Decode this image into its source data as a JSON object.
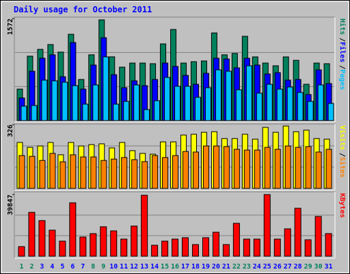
{
  "chart_data": [
    {
      "type": "bar",
      "title": "Daily usage for October 2011",
      "legend_separator": "/",
      "categories": [
        "1",
        "2",
        "3",
        "4",
        "5",
        "6",
        "7",
        "8",
        "9",
        "10",
        "11",
        "12",
        "13",
        "14",
        "15",
        "16",
        "17",
        "18",
        "19",
        "20",
        "21",
        "22",
        "23",
        "24",
        "25",
        "26",
        "27",
        "28",
        "29",
        "30",
        "31"
      ],
      "ylim": [
        0,
        1572
      ],
      "yticks": [
        1572
      ],
      "series": [
        {
          "name": "Hits",
          "color": "#00805c",
          "values": [
            485,
            992,
            1097,
            1171,
            1055,
            1329,
            633,
            1013,
            1551,
            982,
            823,
            886,
            886,
            876,
            1181,
            1403,
            886,
            907,
            918,
            1350,
            1013,
            1034,
            1298,
            981,
            886,
            844,
            981,
            928,
            559,
            886,
            876
          ]
        },
        {
          "name": "Files",
          "color": "#0000ff",
          "values": [
            348,
            760,
            960,
            1013,
            675,
            1202,
            485,
            855,
            1276,
            707,
            506,
            612,
            538,
            633,
            886,
            834,
            696,
            559,
            728,
            960,
            949,
            812,
            960,
            855,
            718,
            738,
            623,
            633,
            401,
            781,
            570
          ]
        },
        {
          "name": "Pages",
          "color": "#00c0ff",
          "values": [
            222,
            232,
            623,
            612,
            591,
            538,
            253,
            549,
            981,
            253,
            295,
            549,
            169,
            306,
            665,
            528,
            528,
            359,
            506,
            781,
            760,
            475,
            844,
            422,
            559,
            485,
            517,
            433,
            295,
            549,
            264
          ]
        }
      ]
    },
    {
      "type": "bar",
      "legend_separator": "/",
      "ylim": [
        0,
        326
      ],
      "yticks": [
        326
      ],
      "series": [
        {
          "name": "Visits",
          "color": "#ffff00",
          "values": [
            235,
            210,
            217,
            235,
            172,
            235,
            217,
            224,
            228,
            207,
            235,
            193,
            179,
            175,
            238,
            238,
            273,
            277,
            287,
            290,
            255,
            255,
            277,
            252,
            312,
            287,
            319,
            290,
            298,
            255,
            252
          ]
        },
        {
          "name": "Sites",
          "color": "#ff8000",
          "values": [
            168,
            164,
            143,
            179,
            136,
            172,
            161,
            161,
            143,
            150,
            158,
            147,
            137,
            168,
            158,
            168,
            189,
            186,
            217,
            217,
            214,
            200,
            196,
            196,
            210,
            200,
            217,
            210,
            214,
            186,
            200
          ]
        }
      ]
    },
    {
      "type": "bar",
      "categories": [
        "1",
        "2",
        "3",
        "4",
        "5",
        "6",
        "7",
        "8",
        "9",
        "10",
        "11",
        "12",
        "13",
        "14",
        "15",
        "16",
        "17",
        "18",
        "19",
        "20",
        "21",
        "22",
        "23",
        "24",
        "25",
        "26",
        "27",
        "28",
        "29",
        "30",
        "31"
      ],
      "highlight_categories": [
        "1",
        "2",
        "8",
        "9",
        "15",
        "16",
        "22",
        "23",
        "29",
        "30"
      ],
      "highlight_color": "#00805c",
      "category_color": "#0000ff",
      "ylim": [
        0,
        39847
      ],
      "yticks": [
        39847
      ],
      "series": [
        {
          "name": "KBytes",
          "color": "#ff0000",
          "values": [
            6198,
            28333,
            23020,
            16823,
            9739,
            34531,
            12396,
            14609,
            19036,
            16380,
            11068,
            19479,
            39401,
            7083,
            9739,
            11068,
            11953,
            7526,
            11953,
            15495,
            7526,
            21250,
            11068,
            11068,
            39843,
            11068,
            17708,
            30989,
            10625,
            25677,
            14609
          ]
        }
      ]
    }
  ]
}
